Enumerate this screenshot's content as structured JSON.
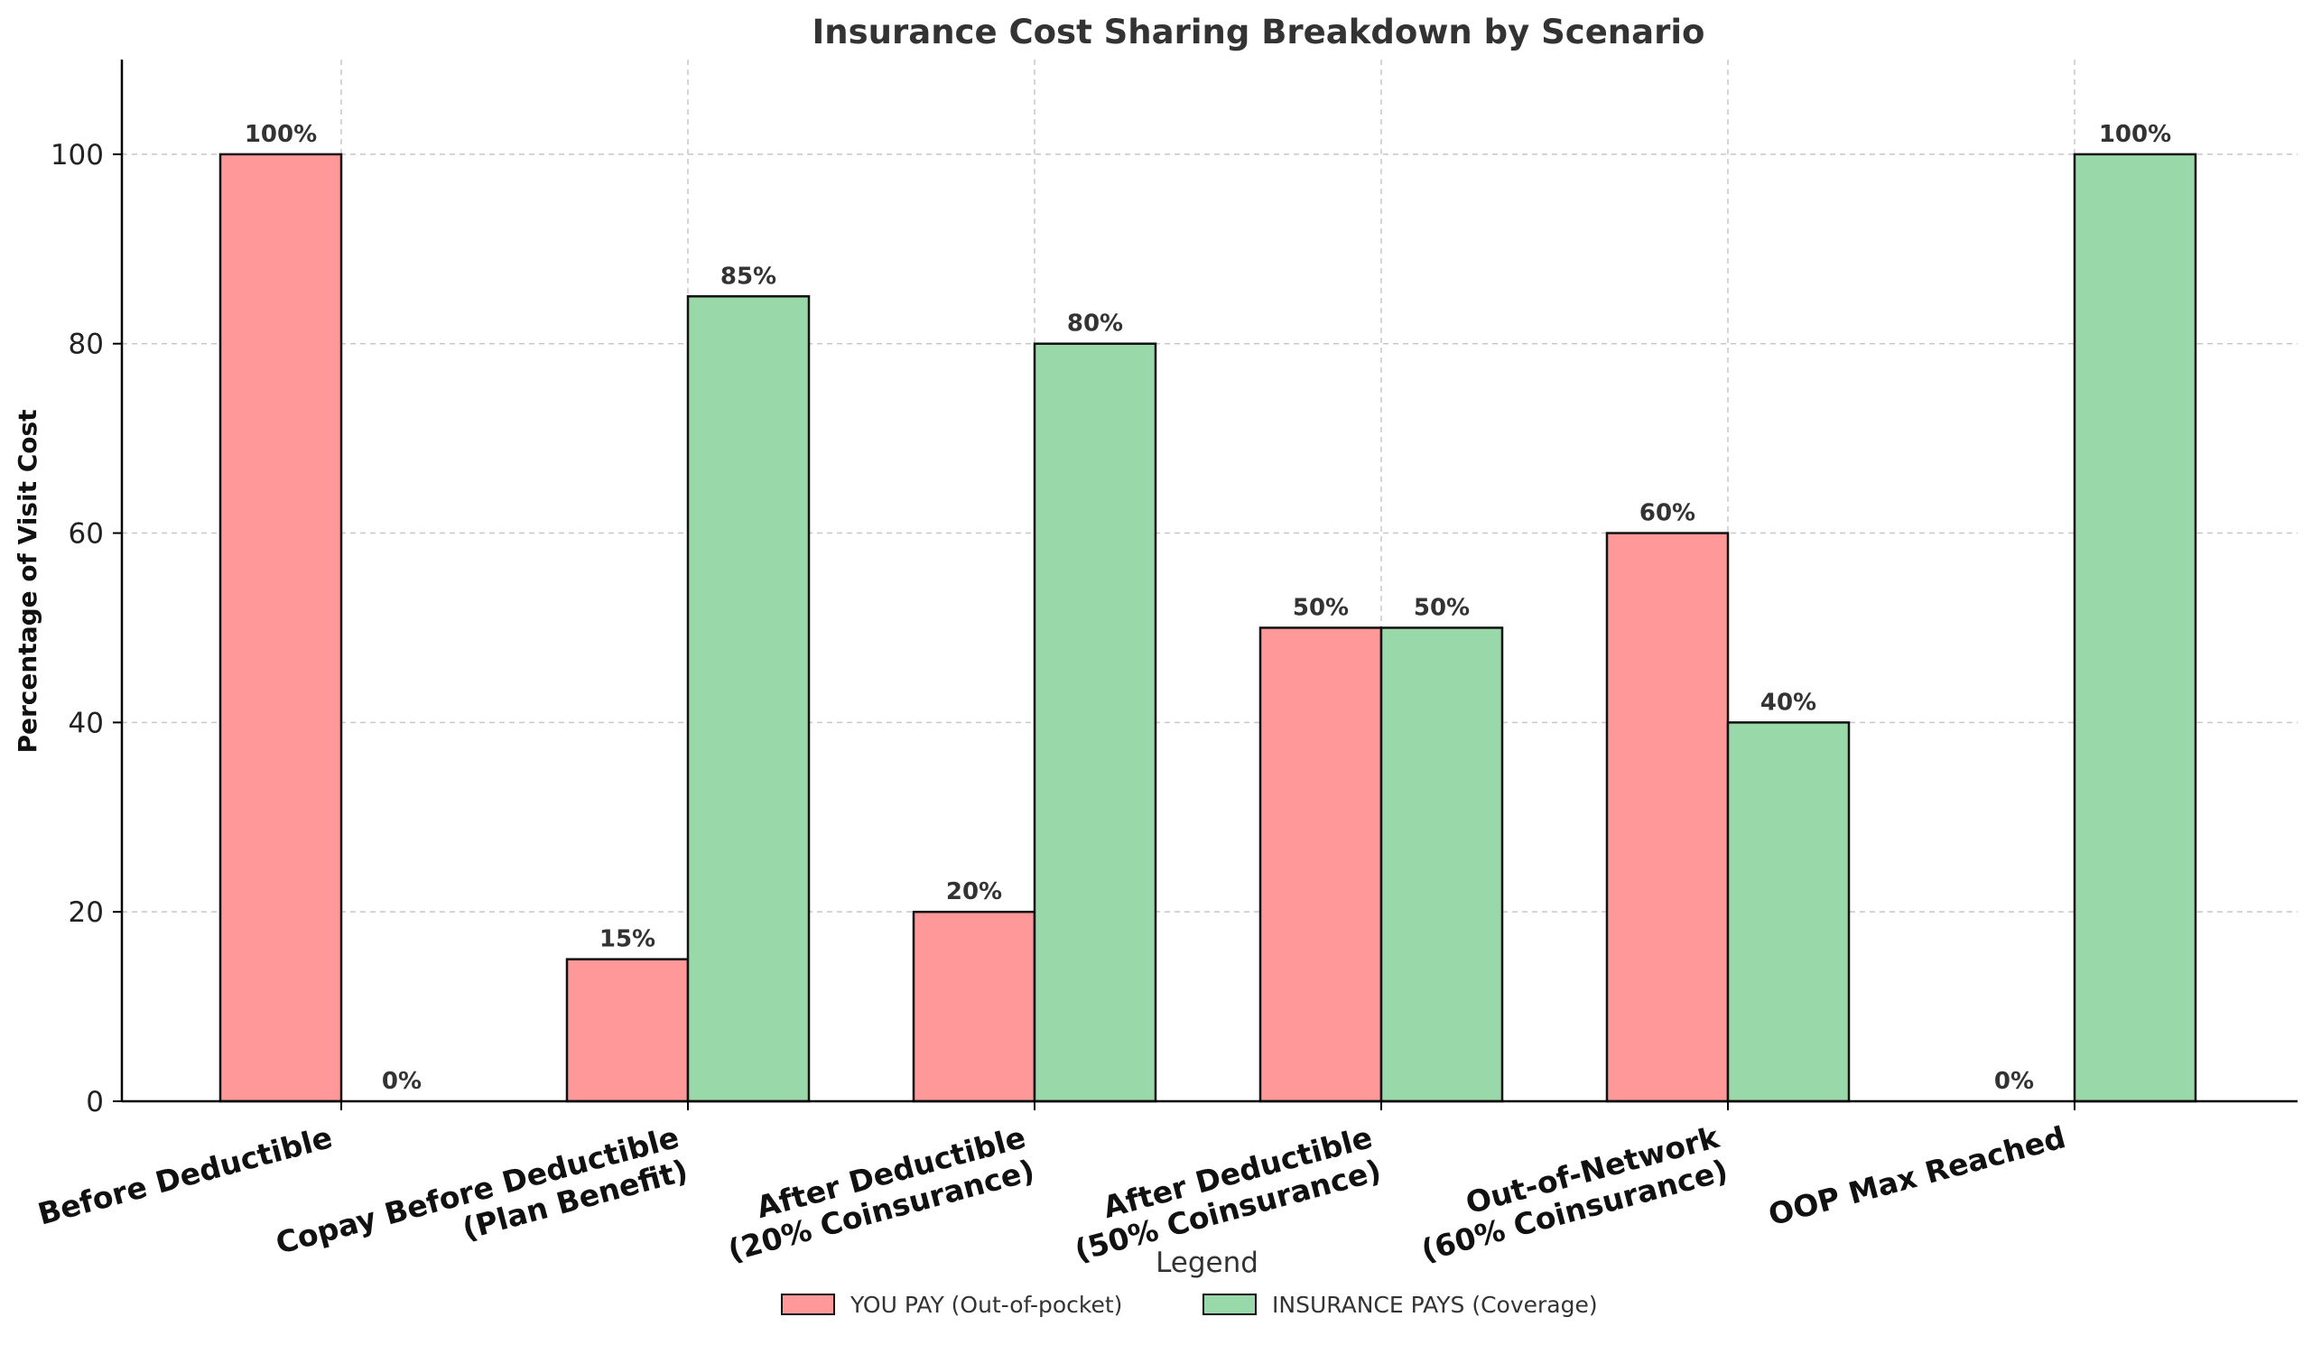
{
  "chart_data": {
    "type": "bar",
    "title": "Insurance Cost Sharing Breakdown by Scenario",
    "xlabel": "",
    "ylabel": "Percentage of Visit Cost",
    "ylim": [
      0,
      110
    ],
    "yticks": [
      0,
      20,
      40,
      60,
      80,
      100
    ],
    "categories": [
      "Before Deductible",
      "Copay Before Deductible\n(Plan Benefit)",
      "After Deductible\n(20% Coinsurance)",
      "After Deductible\n(50% Coinsurance)",
      "Out-of-Network\n(60% Coinsurance)",
      "OOP Max Reached"
    ],
    "series": [
      {
        "name": "YOU PAY (Out-of-pocket)",
        "color": "#ff9999",
        "values": [
          100,
          15,
          20,
          50,
          60,
          0
        ],
        "labels": [
          "100%",
          "15%",
          "20%",
          "50%",
          "60%",
          "0%"
        ]
      },
      {
        "name": "INSURANCE PAYS (Coverage)",
        "color": "#99d8a8",
        "values": [
          0,
          85,
          80,
          50,
          40,
          100
        ],
        "labels": [
          "0%",
          "85%",
          "80%",
          "50%",
          "40%",
          "100%"
        ]
      }
    ],
    "grid": true,
    "legend": {
      "title": "Legend",
      "placement": "bottom-center"
    }
  }
}
